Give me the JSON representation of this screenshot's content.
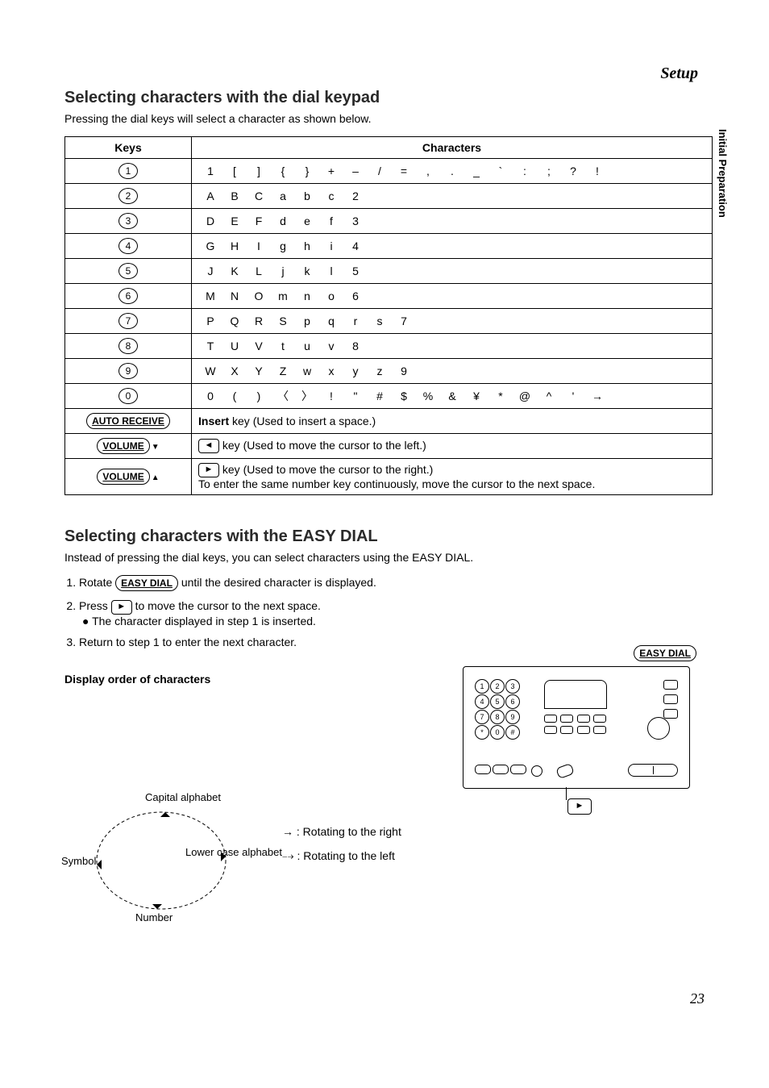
{
  "header": {
    "setup": "Setup",
    "side_tab": "Initial Preparation"
  },
  "section1": {
    "title": "Selecting characters with the dial keypad",
    "intro": "Pressing the dial keys will select a character as shown below.",
    "table": {
      "head_keys": "Keys",
      "head_chars": "Characters",
      "rows": [
        {
          "key": "1",
          "chars": [
            "1",
            "[",
            "]",
            "{",
            "}",
            "+",
            "–",
            "/",
            "=",
            ",",
            ".",
            "_",
            "`",
            ":",
            ";",
            "?",
            "!"
          ]
        },
        {
          "key": "2",
          "chars": [
            "A",
            "B",
            "C",
            "a",
            "b",
            "c",
            "2"
          ]
        },
        {
          "key": "3",
          "chars": [
            "D",
            "E",
            "F",
            "d",
            "e",
            "f",
            "3"
          ]
        },
        {
          "key": "4",
          "chars": [
            "G",
            "H",
            "I",
            "g",
            "h",
            "i",
            "4"
          ]
        },
        {
          "key": "5",
          "chars": [
            "J",
            "K",
            "L",
            "j",
            "k",
            "l",
            "5"
          ]
        },
        {
          "key": "6",
          "chars": [
            "M",
            "N",
            "O",
            "m",
            "n",
            "o",
            "6"
          ]
        },
        {
          "key": "7",
          "chars": [
            "P",
            "Q",
            "R",
            "S",
            "p",
            "q",
            "r",
            "s",
            "7"
          ]
        },
        {
          "key": "8",
          "chars": [
            "T",
            "U",
            "V",
            "t",
            "u",
            "v",
            "8"
          ]
        },
        {
          "key": "9",
          "chars": [
            "W",
            "X",
            "Y",
            "Z",
            "w",
            "x",
            "y",
            "z",
            "9"
          ]
        },
        {
          "key": "0",
          "chars": [
            "0",
            "(",
            ")",
            "〈",
            "〉",
            "!",
            "\"",
            "#",
            "$",
            "%",
            "&",
            "¥",
            "*",
            "@",
            "^",
            "'",
            "→"
          ]
        }
      ],
      "auto_receive": {
        "key": "AUTO RECEIVE",
        "desc_bold": "Insert",
        "desc_rest": " key (Used to insert a space.)"
      },
      "vol_down": {
        "key": "VOLUME",
        "arrow": "◄",
        "desc": " key (Used to move the cursor to the left.)"
      },
      "vol_up": {
        "key": "VOLUME",
        "arrow": "►",
        "desc1": " key (Used to move the cursor to the right.)",
        "desc2": "To enter the same number key continuously, move the cursor to the next space."
      }
    }
  },
  "section2": {
    "title": "Selecting characters with the EASY DIAL",
    "intro": "Instead of pressing the dial keys, you can select characters using the EASY DIAL.",
    "steps": {
      "s1a": "Rotate ",
      "s1_key": "EASY DIAL",
      "s1b": " until the desired character is displayed.",
      "s2a": "Press ",
      "s2_arrow": "►",
      "s2b": " to move the cursor to the next space.",
      "s2_bullet": "The character displayed in step 1 is inserted.",
      "s3": "Return to step 1 to enter the next character."
    },
    "subhead": "Display order of characters",
    "diagram": {
      "capital": "Capital alphabet",
      "lower": "Lower case alphabet",
      "symbol": "Symbol",
      "number": "Number",
      "legend_right_arrow": "→",
      "legend_right": ": Rotating to the right",
      "legend_left_arrow": "⤍",
      "legend_left": ": Rotating to the left"
    },
    "easy_dial_label": "EASY DIAL",
    "play_arrow": "►"
  },
  "page_number": "23",
  "colors": {
    "text": "#000000",
    "bg": "#ffffff"
  }
}
